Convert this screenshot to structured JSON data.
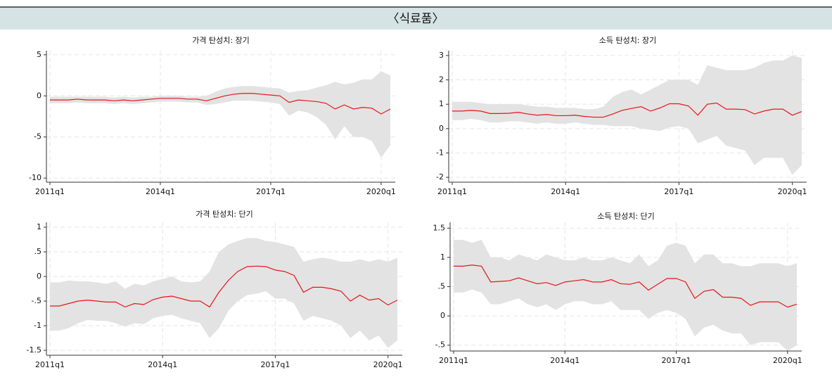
{
  "header": {
    "title": "〈식료품〉"
  },
  "chart_data": [
    {
      "type": "line",
      "title": "가격 탄성치: 장기",
      "x": [
        "2011q1",
        "2011q2",
        "2011q3",
        "2011q4",
        "2012q1",
        "2012q2",
        "2012q3",
        "2012q4",
        "2013q1",
        "2013q2",
        "2013q3",
        "2013q4",
        "2014q1",
        "2014q2",
        "2014q3",
        "2014q4",
        "2015q1",
        "2015q2",
        "2015q3",
        "2015q4",
        "2016q1",
        "2016q2",
        "2016q3",
        "2016q4",
        "2017q1",
        "2017q2",
        "2017q3",
        "2017q4",
        "2018q1",
        "2018q2",
        "2018q3",
        "2018q4",
        "2019q1",
        "2019q2",
        "2019q3",
        "2019q4",
        "2020q1",
        "2020q2"
      ],
      "xticks": [
        "2011q1",
        "2014q1",
        "2017q1",
        "2020q1"
      ],
      "ylim": [
        -10.5,
        5.5
      ],
      "yticks": [
        5,
        0,
        -5,
        -10
      ],
      "grid": true,
      "series": [
        {
          "color": "#e8141b",
          "values": [
            -0.5,
            -0.5,
            -0.5,
            -0.4,
            -0.5,
            -0.5,
            -0.5,
            -0.6,
            -0.5,
            -0.6,
            -0.5,
            -0.4,
            -0.3,
            -0.3,
            -0.3,
            -0.4,
            -0.4,
            -0.6,
            -0.3,
            0,
            0.2,
            0.3,
            0.3,
            0.2,
            0.1,
            0,
            -0.8,
            -0.5,
            -0.6,
            -0.7,
            -0.9,
            -1.6,
            -1.1,
            -1.6,
            -1.4,
            -1.5,
            -2.2,
            -1.6
          ]
        }
      ],
      "band": {
        "color": "#e3e3e3",
        "upper": [
          -0.1,
          -0.1,
          -0.1,
          -0.1,
          -0.1,
          -0.1,
          -0.1,
          -0.2,
          -0.1,
          -0.2,
          -0.1,
          -0.1,
          0,
          0,
          0,
          -0.1,
          -0.1,
          0,
          0.5,
          0.9,
          1.1,
          1.2,
          1.2,
          1.1,
          1.0,
          0.9,
          0.4,
          0.6,
          0.7,
          1.0,
          1.3,
          1.7,
          1.4,
          1.6,
          2.0,
          2.0,
          3.0,
          2.5
        ],
        "lower": [
          -0.9,
          -0.9,
          -0.9,
          -0.8,
          -0.9,
          -0.9,
          -0.9,
          -1.0,
          -0.9,
          -1.0,
          -0.9,
          -0.8,
          -0.7,
          -0.7,
          -0.7,
          -0.8,
          -0.8,
          -1.1,
          -1.0,
          -0.8,
          -0.6,
          -0.6,
          -0.6,
          -0.7,
          -0.8,
          -1.0,
          -2.4,
          -1.8,
          -2.0,
          -2.6,
          -3.5,
          -5.3,
          -3.7,
          -5.0,
          -5.0,
          -5.5,
          -7.5,
          -6.0
        ]
      }
    },
    {
      "type": "line",
      "title": "소득 탄성치: 장기",
      "x": [
        "2011q1",
        "2011q2",
        "2011q3",
        "2011q4",
        "2012q1",
        "2012q2",
        "2012q3",
        "2012q4",
        "2013q1",
        "2013q2",
        "2013q3",
        "2013q4",
        "2014q1",
        "2014q2",
        "2014q3",
        "2014q4",
        "2015q1",
        "2015q2",
        "2015q3",
        "2015q4",
        "2016q1",
        "2016q2",
        "2016q3",
        "2016q4",
        "2017q1",
        "2017q2",
        "2017q3",
        "2017q4",
        "2018q1",
        "2018q2",
        "2018q3",
        "2018q4",
        "2019q1",
        "2019q2",
        "2019q3",
        "2019q4",
        "2020q1",
        "2020q2"
      ],
      "xticks": [
        "2011q1",
        "2014q1",
        "2017q1",
        "2020q1"
      ],
      "ylim": [
        -2.2,
        3.2
      ],
      "yticks": [
        3,
        2,
        1,
        0,
        -1,
        -2
      ],
      "grid": true,
      "series": [
        {
          "color": "#e8141b",
          "values": [
            0.72,
            0.72,
            0.75,
            0.72,
            0.62,
            0.62,
            0.63,
            0.67,
            0.6,
            0.55,
            0.58,
            0.53,
            0.53,
            0.55,
            0.5,
            0.47,
            0.47,
            0.6,
            0.75,
            0.83,
            0.9,
            0.72,
            0.85,
            1.02,
            1.02,
            0.93,
            0.55,
            1.0,
            1.05,
            0.8,
            0.8,
            0.78,
            0.6,
            0.72,
            0.8,
            0.8,
            0.55,
            0.7
          ]
        }
      ],
      "band": {
        "color": "#e3e3e3",
        "upper": [
          1.1,
          1.1,
          1.1,
          1.05,
          1.0,
          1.0,
          1.0,
          1.0,
          0.95,
          0.9,
          0.9,
          0.85,
          0.85,
          0.85,
          0.8,
          0.8,
          0.9,
          1.3,
          1.5,
          1.6,
          1.4,
          1.6,
          1.8,
          2.0,
          2.0,
          2.0,
          1.8,
          2.6,
          2.5,
          2.4,
          2.4,
          2.4,
          2.5,
          2.7,
          2.8,
          2.8,
          3.0,
          2.9
        ],
        "lower": [
          0.35,
          0.35,
          0.4,
          0.35,
          0.25,
          0.25,
          0.3,
          0.3,
          0.25,
          0.2,
          0.25,
          0.2,
          0.2,
          0.25,
          0.2,
          0.15,
          0.15,
          0.1,
          0.1,
          0.1,
          0.0,
          -0.05,
          -0.1,
          0.05,
          0.1,
          0,
          -0.6,
          -0.45,
          -0.3,
          -0.7,
          -0.8,
          -0.9,
          -1.5,
          -1.2,
          -1.2,
          -1.2,
          -1.9,
          -1.5
        ]
      }
    },
    {
      "type": "line",
      "title": "가격 탄성치: 단기",
      "x": [
        "2011q1",
        "2011q2",
        "2011q3",
        "2011q4",
        "2012q1",
        "2012q2",
        "2012q3",
        "2012q4",
        "2013q1",
        "2013q2",
        "2013q3",
        "2013q4",
        "2014q1",
        "2014q2",
        "2014q3",
        "2014q4",
        "2015q1",
        "2015q2",
        "2015q3",
        "2015q4",
        "2016q1",
        "2016q2",
        "2016q3",
        "2016q4",
        "2017q1",
        "2017q2",
        "2017q3",
        "2017q4",
        "2018q1",
        "2018q2",
        "2018q3",
        "2018q4",
        "2019q1",
        "2019q2",
        "2019q3",
        "2019q4",
        "2020q1",
        "2020q2"
      ],
      "xticks": [
        "2011q1",
        "2014q1",
        "2017q1",
        "2020q1"
      ],
      "ylim": [
        -1.6,
        1.1
      ],
      "yticks": [
        1,
        {
          "value": 0.5,
          "label": ".5"
        },
        0,
        {
          "value": -0.5,
          "label": "-.5"
        },
        -1,
        -1.5
      ],
      "grid": true,
      "series": [
        {
          "color": "#e8141b",
          "values": [
            -0.6,
            -0.6,
            -0.55,
            -0.5,
            -0.48,
            -0.5,
            -0.52,
            -0.52,
            -0.62,
            -0.55,
            -0.57,
            -0.47,
            -0.42,
            -0.4,
            -0.45,
            -0.5,
            -0.5,
            -0.62,
            -0.32,
            -0.08,
            0.1,
            0.2,
            0.21,
            0.2,
            0.13,
            0.1,
            0.02,
            -0.32,
            -0.22,
            -0.22,
            -0.25,
            -0.3,
            -0.5,
            -0.38,
            -0.48,
            -0.45,
            -0.58,
            -0.48
          ]
        }
      ],
      "band": {
        "color": "#e3e3e3",
        "upper": [
          -0.12,
          -0.12,
          -0.08,
          -0.1,
          -0.1,
          -0.12,
          -0.15,
          -0.1,
          -0.25,
          -0.15,
          -0.18,
          -0.1,
          -0.05,
          0,
          -0.1,
          -0.12,
          -0.1,
          0.1,
          0.5,
          0.65,
          0.72,
          0.78,
          0.78,
          0.72,
          0.7,
          0.65,
          0.6,
          0.3,
          0.35,
          0.38,
          0.35,
          0.3,
          0.3,
          0.35,
          0.3,
          0.35,
          0.3,
          0.38
        ],
        "lower": [
          -1.1,
          -1.1,
          -1.05,
          -0.95,
          -0.88,
          -0.9,
          -0.9,
          -0.95,
          -1.02,
          -0.95,
          -0.97,
          -0.85,
          -0.8,
          -0.78,
          -0.85,
          -0.9,
          -0.95,
          -1.25,
          -1.05,
          -0.7,
          -0.5,
          -0.38,
          -0.35,
          -0.3,
          -0.45,
          -0.45,
          -0.55,
          -0.9,
          -0.8,
          -0.85,
          -0.9,
          -1.0,
          -1.25,
          -1.1,
          -1.3,
          -1.2,
          -1.45,
          -1.3
        ]
      }
    },
    {
      "type": "line",
      "title": "소득 탄성치: 단기",
      "x": [
        "2011q1",
        "2011q2",
        "2011q3",
        "2011q4",
        "2012q1",
        "2012q2",
        "2012q3",
        "2012q4",
        "2013q1",
        "2013q2",
        "2013q3",
        "2013q4",
        "2014q1",
        "2014q2",
        "2014q3",
        "2014q4",
        "2015q1",
        "2015q2",
        "2015q3",
        "2015q4",
        "2016q1",
        "2016q2",
        "2016q3",
        "2016q4",
        "2017q1",
        "2017q2",
        "2017q3",
        "2017q4",
        "2018q1",
        "2018q2",
        "2018q3",
        "2018q4",
        "2019q1",
        "2019q2",
        "2019q3",
        "2019q4",
        "2020q1",
        "2020q2"
      ],
      "xticks": [
        "2011q1",
        "2014q1",
        "2017q1",
        "2020q1"
      ],
      "ylim": [
        -0.6,
        1.6
      ],
      "yticks": [
        1.5,
        1,
        {
          "value": 0.5,
          "label": ".5"
        },
        0,
        {
          "value": -0.5,
          "label": "-.5"
        }
      ],
      "grid": true,
      "series": [
        {
          "color": "#e8141b",
          "values": [
            0.85,
            0.85,
            0.87,
            0.85,
            0.58,
            0.59,
            0.6,
            0.65,
            0.6,
            0.55,
            0.57,
            0.52,
            0.58,
            0.6,
            0.62,
            0.58,
            0.58,
            0.62,
            0.55,
            0.54,
            0.58,
            0.44,
            0.54,
            0.64,
            0.64,
            0.58,
            0.3,
            0.42,
            0.45,
            0.32,
            0.32,
            0.3,
            0.18,
            0.24,
            0.24,
            0.24,
            0.15,
            0.2
          ]
        }
      ],
      "band": {
        "color": "#e3e3e3",
        "upper": [
          1.3,
          1.3,
          1.25,
          1.3,
          1.0,
          1.0,
          0.95,
          1.05,
          1.0,
          0.95,
          1.05,
          1.0,
          0.95,
          0.95,
          1.0,
          0.95,
          0.95,
          1.0,
          0.95,
          0.9,
          1.05,
          0.85,
          0.95,
          1.2,
          1.25,
          1.2,
          0.9,
          1.05,
          1.05,
          0.9,
          0.9,
          0.85,
          0.85,
          0.9,
          0.9,
          0.9,
          0.85,
          0.9
        ],
        "lower": [
          0.4,
          0.4,
          0.45,
          0.4,
          0.2,
          0.2,
          0.25,
          0.3,
          0.2,
          0.15,
          0.2,
          0.1,
          0.2,
          0.25,
          0.25,
          0.2,
          0.2,
          0.25,
          0.1,
          0.1,
          0.1,
          -0.05,
          0.05,
          0.1,
          0.05,
          -0.05,
          -0.35,
          -0.2,
          -0.15,
          -0.25,
          -0.3,
          -0.3,
          -0.5,
          -0.45,
          -0.45,
          -0.45,
          -0.6,
          -0.5
        ]
      }
    }
  ]
}
